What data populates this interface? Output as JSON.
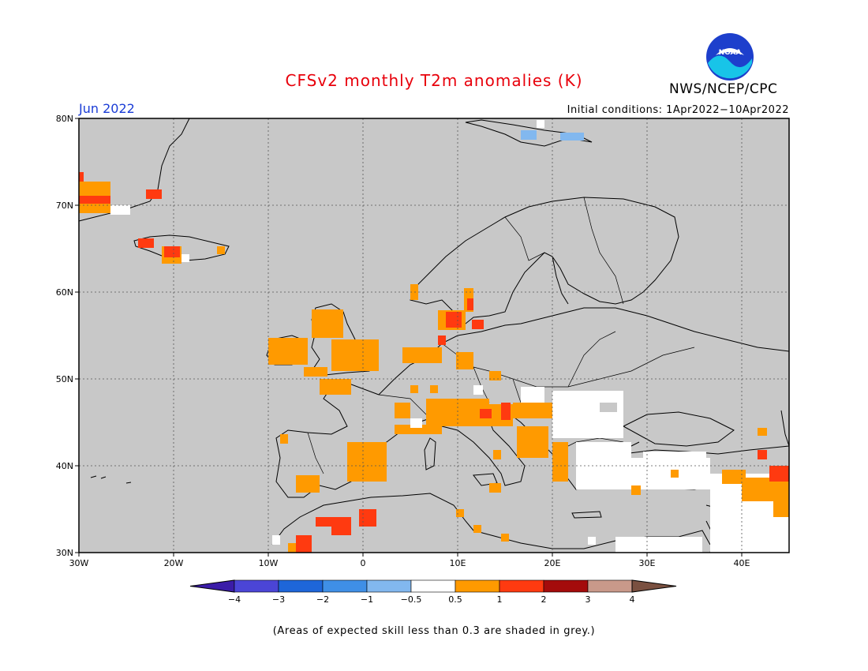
{
  "title": "CFSv2 monthly T2m anomalies (K)",
  "organization": "NWS/NCEP/CPC",
  "logo_text": "NOAA",
  "month_label": "Jun 2022",
  "initial_conditions": "Initial conditions: 1Apr2022−10Apr2022",
  "footnote": "(Areas of expected skill less than 0.3 are shaded in grey.)",
  "map": {
    "lon_range": [
      -30,
      45
    ],
    "lat_range": [
      30,
      80
    ],
    "grid": true,
    "lat_labels": [
      "30N",
      "40N",
      "50N",
      "60N",
      "70N",
      "80N"
    ],
    "lon_labels": [
      "30W",
      "20W",
      "10W",
      "0",
      "10E",
      "20E",
      "30E",
      "40E"
    ],
    "background_color": "#c8c8c8"
  },
  "colorbar": {
    "labels": [
      "−4",
      "−3",
      "−2",
      "−1",
      "−0.5",
      "0.5",
      "1",
      "2",
      "3",
      "4"
    ],
    "colors": [
      "#3b1ca8",
      "#4b45d6",
      "#1e66d9",
      "#3f8fe6",
      "#82b8ef",
      "#ffffff",
      "#ff9a00",
      "#ff3a10",
      "#a40b0b",
      "#c9998a",
      "#7a5040"
    ]
  },
  "legend_colors": {
    "neutral": "#ffffff",
    "warm_05_1": "#ff9a00",
    "warm_1_2": "#ff3a10",
    "cool_05_1": "#82b8ef",
    "low_skill": "#c8c8c8"
  }
}
